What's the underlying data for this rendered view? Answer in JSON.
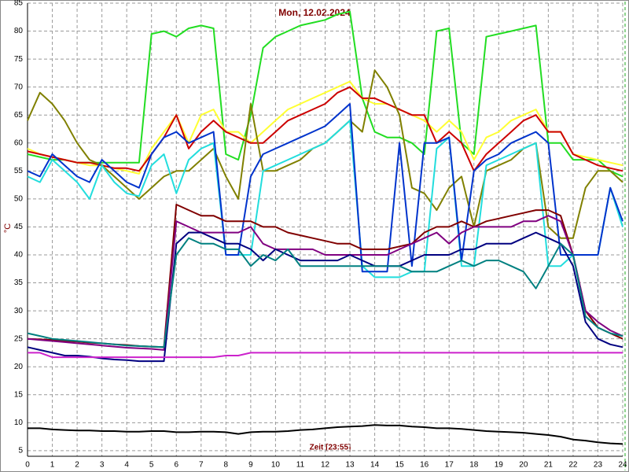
{
  "chart_data": {
    "type": "line",
    "title": "Mon, 12.02.2024",
    "x_label": "Zeit [23:55]",
    "y_label": "°C",
    "xlim": [
      0,
      24
    ],
    "ylim": [
      4,
      85
    ],
    "xticks": [
      0,
      1,
      2,
      3,
      4,
      5,
      6,
      7,
      8,
      9,
      10,
      11,
      12,
      13,
      14,
      15,
      16,
      17,
      18,
      19,
      20,
      21,
      22,
      23,
      24
    ],
    "yticks": [
      5,
      10,
      15,
      20,
      25,
      30,
      35,
      40,
      45,
      50,
      55,
      60,
      65,
      70,
      75,
      80,
      85
    ],
    "grid": true,
    "x": [
      0,
      0.5,
      1,
      1.5,
      2,
      2.5,
      3,
      3.5,
      4,
      4.5,
      5,
      5.5,
      6,
      6.5,
      7,
      7.5,
      8,
      8.5,
      9,
      9.5,
      10,
      10.5,
      11,
      11.5,
      12,
      12.5,
      13,
      13.5,
      14,
      14.5,
      15,
      15.5,
      16,
      16.5,
      17,
      17.5,
      18,
      18.5,
      19,
      19.5,
      20,
      20.5,
      21,
      21.5,
      22,
      22.5,
      23,
      23.5,
      24
    ],
    "series": [
      {
        "color": "#22dd22",
        "values": [
          58,
          57.5,
          57,
          57,
          56.5,
          56.5,
          56.5,
          56.5,
          56.5,
          56.5,
          79.5,
          80,
          79,
          80.5,
          81,
          80.5,
          58,
          57,
          65,
          77,
          79,
          80,
          81,
          81.5,
          82,
          83,
          83.5,
          68,
          62,
          61,
          61,
          60,
          58,
          80,
          80.5,
          60,
          58,
          79,
          79.5,
          80,
          80.5,
          81,
          60,
          60,
          57,
          57,
          57,
          55,
          54
        ]
      },
      {
        "color": "#ffff33",
        "values": [
          59,
          58,
          57.5,
          57,
          56.5,
          56,
          56,
          55.5,
          55,
          54.5,
          59,
          62,
          65,
          60,
          65,
          66,
          62,
          62,
          60,
          62,
          64,
          66,
          67,
          68,
          69,
          70,
          71,
          68,
          67,
          67,
          66,
          65,
          64,
          62,
          64,
          62,
          57,
          61,
          62,
          64,
          65,
          66,
          62,
          62,
          58,
          57.5,
          57,
          56.5,
          56
        ]
      },
      {
        "color": "#cc0000",
        "values": [
          58.5,
          58,
          57.5,
          57,
          56.5,
          56.5,
          56,
          55.5,
          55.5,
          55,
          58,
          61,
          65,
          59,
          62,
          64,
          62,
          61,
          60,
          60,
          62,
          64,
          65,
          66,
          67,
          69,
          70,
          68,
          68,
          67,
          66,
          65,
          65,
          60,
          62,
          60,
          55,
          58,
          60,
          62,
          64,
          65,
          62,
          62,
          58,
          57,
          56,
          55.5,
          55
        ]
      },
      {
        "color": "#808000",
        "values": [
          64,
          69,
          67,
          64,
          60,
          57,
          56,
          54,
          52,
          50,
          52,
          54,
          55,
          55,
          57,
          59,
          54,
          50,
          67,
          55,
          55,
          56,
          57,
          59,
          60,
          62,
          64,
          62,
          73,
          70,
          65,
          52,
          51,
          48,
          52,
          54,
          45,
          55,
          56,
          57,
          59,
          60,
          45,
          43,
          43,
          52,
          55,
          55,
          53
        ]
      },
      {
        "color": "#22dddd",
        "values": [
          54,
          53,
          57,
          55,
          53,
          50,
          56,
          53,
          51,
          50.5,
          56,
          58,
          51,
          57,
          59,
          60,
          40,
          40,
          40,
          55,
          56,
          57,
          58,
          59,
          60,
          62,
          64,
          38,
          36,
          36,
          36,
          37,
          37,
          59,
          61,
          38,
          38,
          56,
          57,
          58,
          59,
          60,
          38,
          38,
          40,
          40,
          40,
          52,
          45
        ]
      },
      {
        "color": "#0033cc",
        "values": [
          55,
          54,
          58,
          56,
          54,
          53,
          57,
          55,
          53,
          52,
          58,
          61,
          62,
          60,
          61,
          62,
          40,
          40,
          54,
          58,
          59,
          60,
          61,
          62,
          63,
          65,
          67,
          37,
          37,
          37,
          60,
          38,
          60,
          60,
          61,
          39,
          55,
          57,
          58,
          60,
          61,
          62,
          60,
          40,
          40,
          40,
          40,
          52,
          46
        ]
      },
      {
        "color": "#800000",
        "values": [
          25,
          24.9,
          24.8,
          24.6,
          24.5,
          24.3,
          24.2,
          24,
          23.9,
          23.7,
          23.6,
          23.5,
          49,
          48,
          47,
          47,
          46,
          46,
          46,
          45,
          45,
          44,
          43.5,
          43,
          42.5,
          42,
          42,
          41,
          41,
          41,
          41.5,
          42,
          44,
          45,
          45,
          46,
          45,
          46,
          46.5,
          47,
          47.5,
          48,
          48,
          47,
          40,
          30,
          27,
          26,
          25
        ]
      },
      {
        "color": "#800080",
        "values": [
          25,
          24.8,
          24.6,
          24.4,
          24.2,
          24,
          23.8,
          23.6,
          23.4,
          23.3,
          23.2,
          23,
          46,
          45,
          44,
          44,
          44,
          44,
          45,
          42,
          41,
          41,
          41,
          41,
          40,
          40,
          40,
          40,
          40,
          40,
          41,
          42,
          43,
          44,
          42,
          44,
          45,
          45,
          45,
          45,
          46,
          46,
          47,
          46,
          40,
          30,
          28,
          26.5,
          25.5
        ]
      },
      {
        "color": "#000080",
        "values": [
          23.5,
          23,
          22.5,
          22,
          22,
          21.8,
          21.5,
          21.3,
          21.2,
          21,
          21,
          21,
          42,
          44,
          44,
          43,
          42,
          42,
          41,
          39,
          41,
          40,
          39,
          39,
          39,
          39,
          40,
          39,
          38,
          38,
          38,
          39,
          40,
          40,
          40,
          41,
          41,
          42,
          42,
          42,
          43,
          44,
          43,
          42,
          38,
          28,
          25,
          24,
          23.5
        ]
      },
      {
        "color": "#008080",
        "values": [
          26,
          25.5,
          25,
          24.8,
          24.6,
          24.4,
          24.2,
          24,
          23.8,
          23.7,
          23.6,
          23.5,
          40,
          43,
          42,
          42,
          41,
          41,
          38,
          40,
          39,
          41,
          38,
          38,
          38,
          38,
          38,
          38,
          38,
          38,
          38,
          37,
          37,
          37,
          38,
          39,
          38,
          39,
          39,
          38,
          37,
          34,
          38,
          42,
          40,
          29,
          27,
          26,
          25.5
        ]
      },
      {
        "color": "#cc22cc",
        "values": [
          22.5,
          22.5,
          21.7,
          21.7,
          21.7,
          21.7,
          21.7,
          21.7,
          21.7,
          21.7,
          21.7,
          21.7,
          21.7,
          21.7,
          21.7,
          21.7,
          22,
          22,
          22.5,
          22.5,
          22.5,
          22.5,
          22.5,
          22.5,
          22.5,
          22.5,
          22.5,
          22.5,
          22.5,
          22.5,
          22.5,
          22.5,
          22.5,
          22.5,
          22.5,
          22.5,
          22.5,
          22.5,
          22.5,
          22.5,
          22.5,
          22.5,
          22.5,
          22.5,
          22.5,
          22.5,
          22.5,
          22.5,
          22.5
        ]
      },
      {
        "color": "#000000",
        "values": [
          9,
          9,
          8.8,
          8.7,
          8.6,
          8.6,
          8.5,
          8.5,
          8.4,
          8.4,
          8.5,
          8.5,
          8.3,
          8.3,
          8.4,
          8.4,
          8.3,
          8,
          8.3,
          8.4,
          8.4,
          8.5,
          8.7,
          8.8,
          9,
          9.2,
          9.3,
          9.4,
          9.6,
          9.5,
          9.5,
          9.3,
          9.2,
          9,
          9,
          8.9,
          8.7,
          8.5,
          8.4,
          8.3,
          8.2,
          8,
          7.8,
          7.5,
          7,
          6.8,
          6.5,
          6.3,
          6.2
        ]
      }
    ]
  }
}
